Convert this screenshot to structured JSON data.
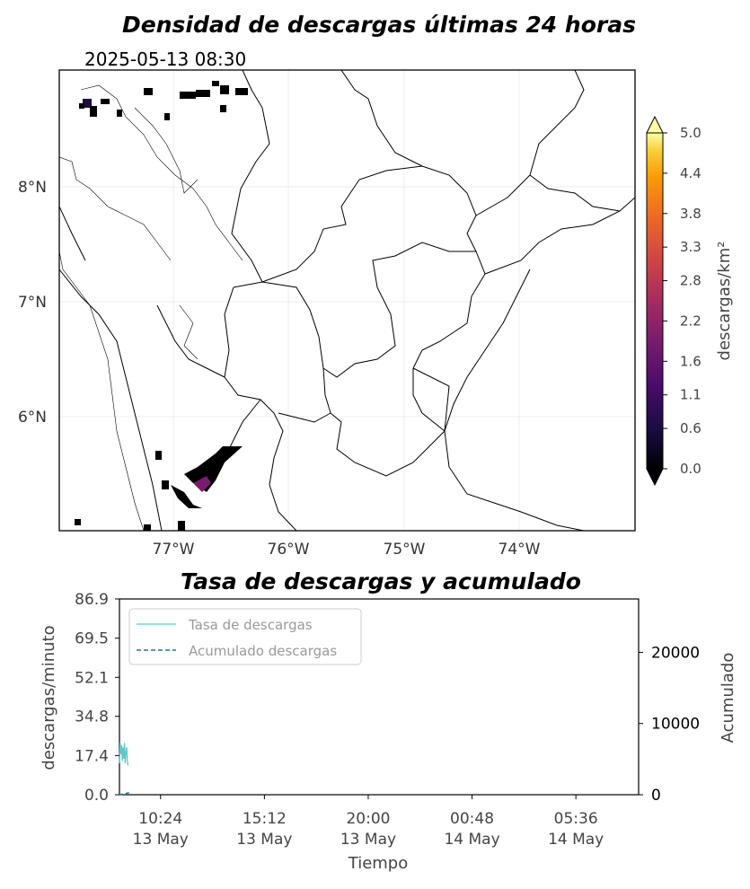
{
  "map": {
    "title": "Densidad de descargas últimas 24 horas",
    "timestamp": "2025-05-13 08:30",
    "lat_ticks": [
      "8°N",
      "7°N",
      "6°N"
    ],
    "lon_ticks": [
      "77°W",
      "76°W",
      "75°W",
      "74°W"
    ],
    "colorbar": {
      "label": "descargas/km²",
      "ticks": [
        "0.0",
        "0.6",
        "1.1",
        "1.6",
        "2.2",
        "2.8",
        "3.3",
        "3.8",
        "4.4",
        "5.0"
      ],
      "colormap": "inferno"
    }
  },
  "chart_data": {
    "type": "line",
    "title": "Tasa de descargas y acumulado",
    "xlabel": "Tiempo",
    "ylabel": "descargas/minuto",
    "ylabel_right": "Acumulado",
    "x_ticks": [
      {
        "time": "10:24",
        "date": "13 May"
      },
      {
        "time": "15:12",
        "date": "13 May"
      },
      {
        "time": "20:00",
        "date": "13 May"
      },
      {
        "time": "00:48",
        "date": "14 May"
      },
      {
        "time": "05:36",
        "date": "14 May"
      }
    ],
    "y_ticks": [
      "86.9",
      "69.5",
      "52.1",
      "34.8",
      "17.4",
      "0.0"
    ],
    "ylim": [
      0,
      86.9
    ],
    "y2_ticks": [
      "0",
      "10000",
      "20000"
    ],
    "y2lim": [
      0,
      27500
    ],
    "legend_location": "upper-left",
    "series": [
      {
        "name": "Tasa de descargas",
        "color": "#5ec8c8",
        "style": "solid",
        "x": [
          "08:30",
          "08:32",
          "08:34",
          "08:36",
          "08:38",
          "08:40",
          "08:42",
          "08:44",
          "08:46",
          "08:48",
          "08:50",
          "08:52",
          "08:54"
        ],
        "values": [
          14,
          23,
          18,
          22,
          15,
          21,
          16,
          23,
          14,
          19,
          21,
          15,
          13
        ]
      },
      {
        "name": "Acumulado descargas",
        "color": "#2f6f99",
        "style": "dashed",
        "x": [
          "08:30",
          "08:45",
          "09:00"
        ],
        "values": [
          0,
          150,
          300
        ]
      }
    ]
  }
}
